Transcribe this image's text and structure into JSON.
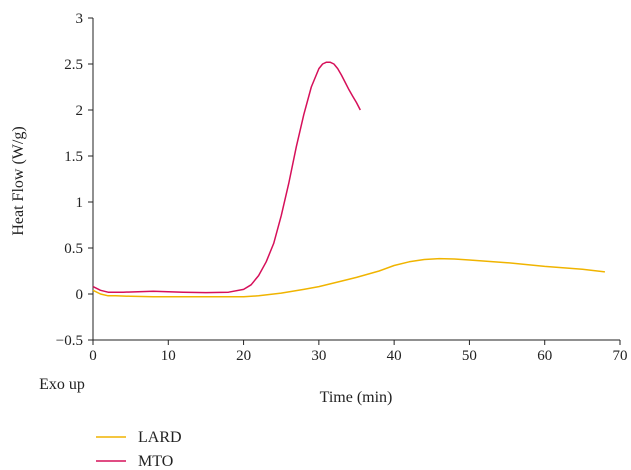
{
  "chart_data": {
    "type": "line",
    "xlabel": "Time (min)",
    "ylabel": "Heat Flow (W/g)",
    "corner_note": "Exo up",
    "xlim": [
      0,
      70
    ],
    "ylim": [
      -0.5,
      3
    ],
    "x_ticks": [
      0,
      10,
      20,
      30,
      40,
      50,
      60,
      70
    ],
    "y_ticks": [
      -0.5,
      0,
      0.5,
      1,
      1.5,
      2,
      2.5,
      3
    ],
    "y_tick_labels": [
      "−0.5",
      "0",
      "0.5",
      "1",
      "1.5",
      "2",
      "2.5",
      "3"
    ],
    "grid": false,
    "legend_position": "bottom-left",
    "series": [
      {
        "name": "LARD",
        "color": "#f0b400",
        "x": [
          0,
          1,
          2,
          3,
          5,
          8,
          10,
          15,
          20,
          22,
          25,
          28,
          30,
          33,
          35,
          38,
          40,
          42,
          44,
          46,
          48,
          50,
          55,
          60,
          65,
          68
        ],
        "y": [
          0.04,
          0.0,
          -0.02,
          -0.02,
          -0.025,
          -0.03,
          -0.03,
          -0.03,
          -0.03,
          -0.02,
          0.01,
          0.05,
          0.08,
          0.14,
          0.18,
          0.25,
          0.31,
          0.35,
          0.375,
          0.385,
          0.38,
          0.37,
          0.34,
          0.3,
          0.27,
          0.24
        ]
      },
      {
        "name": "MTO",
        "color": "#d6105a",
        "x": [
          0,
          1,
          2,
          4,
          6,
          8,
          10,
          12,
          15,
          18,
          20,
          21,
          22,
          23,
          24,
          25,
          26,
          27,
          28,
          29,
          30,
          30.5,
          31,
          31.5,
          32,
          32.5,
          33,
          33.5,
          34,
          34.5,
          35,
          35.5
        ],
        "y": [
          0.08,
          0.04,
          0.02,
          0.02,
          0.025,
          0.03,
          0.025,
          0.02,
          0.015,
          0.02,
          0.05,
          0.1,
          0.2,
          0.35,
          0.55,
          0.85,
          1.2,
          1.6,
          1.95,
          2.25,
          2.45,
          2.5,
          2.52,
          2.52,
          2.5,
          2.45,
          2.38,
          2.3,
          2.22,
          2.15,
          2.08,
          2.0
        ]
      }
    ]
  }
}
